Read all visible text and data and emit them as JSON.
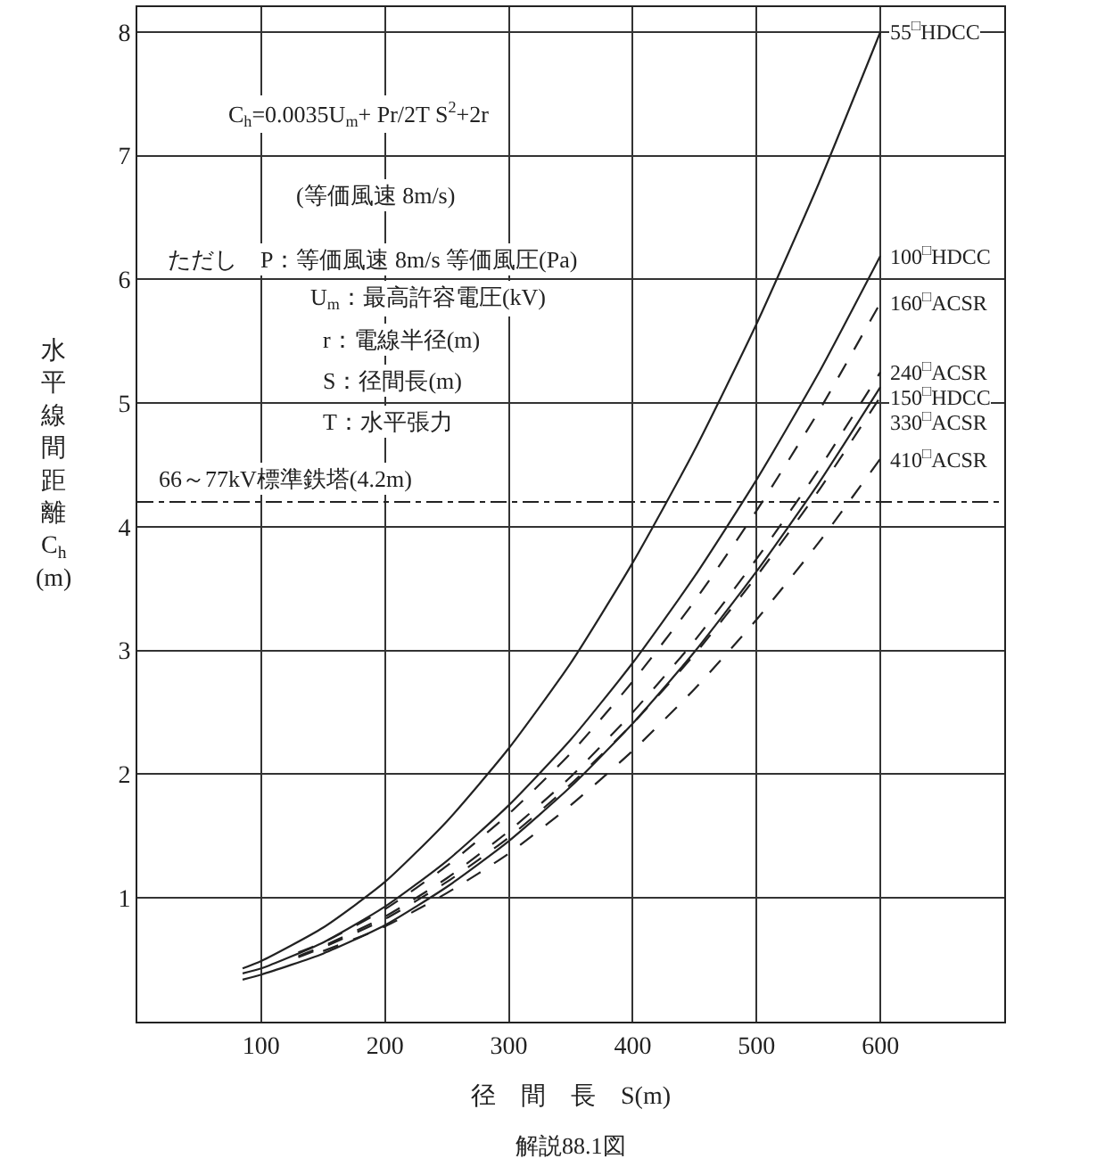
{
  "chart_data": {
    "type": "line",
    "xlabel": "径　間　長　S(m)",
    "ylabel": "水平線間距離 C$_{h}$ (m)",
    "xlim": [
      0,
      700
    ],
    "ylim": [
      0,
      8.2
    ],
    "xticks": [
      100,
      200,
      300,
      400,
      500,
      600
    ],
    "yticks": [
      1,
      2,
      3,
      4,
      5,
      6,
      7,
      8
    ],
    "grid": true,
    "legend": false,
    "marker": "none",
    "series": [
      {
        "name": "55$^{□}$HDCC",
        "color": "#222222",
        "line_style": "solid",
        "x": [
          85,
          100,
          150,
          200,
          250,
          300,
          350,
          400,
          450,
          500,
          550,
          600
        ],
        "values": [
          0.43,
          0.49,
          0.76,
          1.13,
          1.62,
          2.21,
          2.9,
          3.71,
          4.62,
          5.64,
          6.77,
          8.0
        ]
      },
      {
        "name": "100$^{□}$HDCC",
        "color": "#222222",
        "line_style": "solid",
        "x": [
          85,
          100,
          150,
          200,
          250,
          300,
          350,
          400,
          450,
          500,
          550,
          600
        ],
        "values": [
          0.39,
          0.43,
          0.64,
          0.93,
          1.3,
          1.75,
          2.28,
          2.9,
          3.6,
          4.38,
          5.24,
          6.19
        ]
      },
      {
        "name": "160$^{□}$ACSR",
        "color": "#222222",
        "line_style": "dashed",
        "x": [
          130,
          150,
          200,
          250,
          300,
          350,
          400,
          450,
          500,
          550,
          600
        ],
        "values": [
          0.56,
          0.64,
          0.91,
          1.26,
          1.68,
          2.17,
          2.75,
          3.4,
          4.13,
          4.93,
          5.81
        ]
      },
      {
        "name": "240$^{□}$ACSR",
        "color": "#222222",
        "line_style": "dashed",
        "x": [
          130,
          150,
          200,
          250,
          300,
          350,
          400,
          450,
          500,
          550,
          600
        ],
        "values": [
          0.53,
          0.61,
          0.85,
          1.16,
          1.54,
          1.98,
          2.5,
          3.08,
          3.74,
          4.46,
          5.25
        ]
      },
      {
        "name": "150$^{□}$HDCC",
        "color": "#222222",
        "line_style": "solid",
        "x": [
          85,
          100,
          150,
          200,
          250,
          300,
          350,
          400,
          450,
          500,
          550,
          600
        ],
        "values": [
          0.34,
          0.38,
          0.55,
          0.78,
          1.09,
          1.46,
          1.9,
          2.41,
          2.99,
          3.64,
          4.35,
          5.13
        ]
      },
      {
        "name": "330$^{□}$ACSR",
        "color": "#222222",
        "line_style": "dashed",
        "x": [
          130,
          150,
          200,
          250,
          300,
          350,
          400,
          450,
          500,
          550,
          600
        ],
        "values": [
          0.52,
          0.6,
          0.83,
          1.13,
          1.49,
          1.92,
          2.41,
          2.97,
          3.6,
          4.29,
          5.05
        ]
      },
      {
        "name": "410$^{□}$ACSR",
        "color": "#222222",
        "line_style": "dashed",
        "x": [
          150,
          200,
          250,
          300,
          350,
          400,
          450,
          500,
          550,
          600
        ],
        "values": [
          0.57,
          0.77,
          1.04,
          1.36,
          1.75,
          2.19,
          2.69,
          3.25,
          3.87,
          4.55
        ]
      }
    ],
    "ref_lines": [
      {
        "axis": "y",
        "value": 4.2,
        "label": "66～77kV標準鉄塔(4.2m)",
        "color": "#222222",
        "line_style": "dashdot"
      }
    ],
    "annotations": [
      "C$_{h}$=0.0035U$_{m}$+ Pr/2T S$^{2}$+2r",
      "(等価風速 8m/s)",
      "ただし　P：等価風速 8m/s 等価風圧(Pa)",
      "U$_{m}$：最高許容電圧(kV)",
      "r：電線半径(m)",
      "S：径間長(m)",
      "T：水平張力",
      "解説88.1図"
    ]
  }
}
